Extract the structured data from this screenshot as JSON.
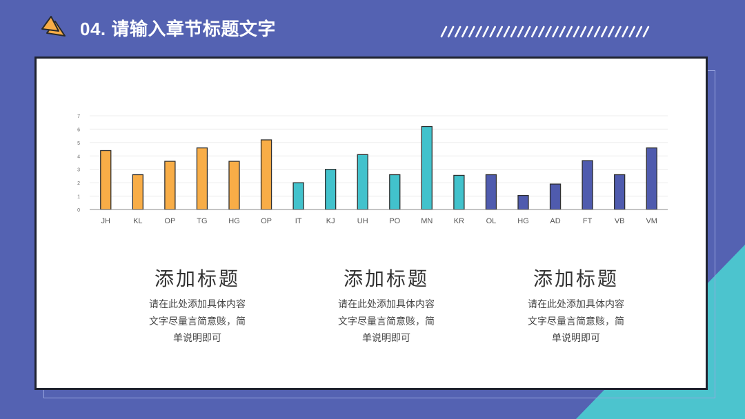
{
  "header": {
    "title": "04. 请输入章节标题文字",
    "logo_icon": "double-triangle-icon",
    "stripe_count": 30
  },
  "colors": {
    "background": "#5462b2",
    "accent_teal": "#4cc4ce",
    "orange": "#f8ad47",
    "teal": "#42c2cc",
    "indigo": "#4f5bae",
    "card_border": "#1f2330"
  },
  "chart_data": {
    "type": "bar",
    "title": "",
    "xlabel": "",
    "ylabel": "",
    "ylim": [
      0,
      7
    ],
    "yticks": [
      0,
      1,
      2,
      3,
      4,
      5,
      6,
      7
    ],
    "grid": true,
    "legend": "none",
    "categories": [
      "JH",
      "KL",
      "OP",
      "TG",
      "HG",
      "OP",
      "IT",
      "KJ",
      "UH",
      "PO",
      "MN",
      "KR",
      "OL",
      "HG",
      "AD",
      "FT",
      "VB",
      "VM"
    ],
    "values": [
      4.4,
      2.6,
      3.6,
      4.6,
      3.6,
      5.2,
      2.0,
      3.0,
      4.1,
      2.6,
      6.2,
      2.55,
      2.6,
      1.05,
      1.9,
      3.65,
      2.6,
      4.6
    ],
    "bar_colors": [
      "#f8ad47",
      "#f8ad47",
      "#f8ad47",
      "#f8ad47",
      "#f8ad47",
      "#f8ad47",
      "#42c2cc",
      "#42c2cc",
      "#42c2cc",
      "#42c2cc",
      "#42c2cc",
      "#42c2cc",
      "#4f5bae",
      "#4f5bae",
      "#4f5bae",
      "#4f5bae",
      "#4f5bae",
      "#4f5bae"
    ]
  },
  "columns": [
    {
      "heading": "添加标题",
      "lines": [
        "请在此处添加具体内容",
        "文字尽量言简意赅，简",
        "单说明即可"
      ]
    },
    {
      "heading": "添加标题",
      "lines": [
        "请在此处添加具体内容",
        "文字尽量言简意赅，简",
        "单说明即可"
      ]
    },
    {
      "heading": "添加标题",
      "lines": [
        "请在此处添加具体内容",
        "文字尽量言简意赅，简",
        "单说明即可"
      ]
    }
  ]
}
